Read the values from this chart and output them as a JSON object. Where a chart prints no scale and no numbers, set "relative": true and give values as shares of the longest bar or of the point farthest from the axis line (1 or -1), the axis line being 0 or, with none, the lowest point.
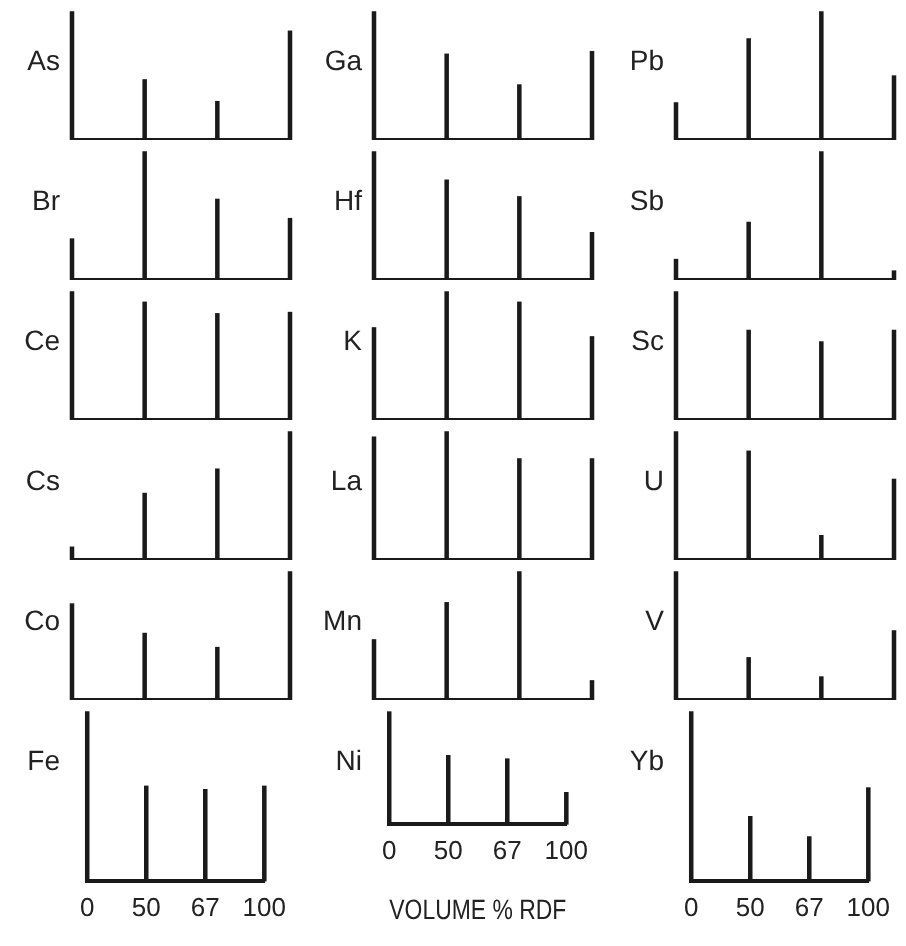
{
  "chart_data": [
    {
      "type": "bar",
      "ylabel": "As",
      "categories": [
        "0",
        "50",
        "67",
        "100"
      ],
      "values": [
        1,
        0.47,
        0.3,
        0.85
      ],
      "relative": true,
      "color": "#1a1a1a",
      "tick_labels": false
    },
    {
      "type": "bar",
      "ylabel": "Ga",
      "categories": [
        "0",
        "50",
        "67",
        "100"
      ],
      "values": [
        1,
        0.67,
        0.43,
        0.69
      ],
      "relative": true,
      "color": "#1a1a1a",
      "tick_labels": false
    },
    {
      "type": "bar",
      "ylabel": "Pb",
      "categories": [
        "0",
        "50",
        "67",
        "100"
      ],
      "values": [
        0.29,
        0.79,
        1,
        0.5
      ],
      "relative": true,
      "color": "#1a1a1a",
      "tick_labels": false
    },
    {
      "type": "bar",
      "ylabel": "Br",
      "categories": [
        "0",
        "50",
        "67",
        "100"
      ],
      "values": [
        0.32,
        1,
        0.63,
        0.48
      ],
      "relative": true,
      "color": "#1a1a1a",
      "tick_labels": false
    },
    {
      "type": "bar",
      "ylabel": "Hf",
      "categories": [
        "0",
        "50",
        "67",
        "100"
      ],
      "values": [
        1,
        0.78,
        0.65,
        0.37
      ],
      "relative": true,
      "color": "#1a1a1a",
      "tick_labels": false
    },
    {
      "type": "bar",
      "ylabel": "Sb",
      "categories": [
        "0",
        "50",
        "67",
        "100"
      ],
      "values": [
        0.16,
        0.45,
        1,
        0.07
      ],
      "relative": true,
      "color": "#1a1a1a",
      "tick_labels": false
    },
    {
      "type": "bar",
      "ylabel": "Ce",
      "categories": [
        "0",
        "50",
        "67",
        "100"
      ],
      "values": [
        1,
        0.92,
        0.83,
        0.84
      ],
      "relative": true,
      "color": "#1a1a1a",
      "tick_labels": false
    },
    {
      "type": "bar",
      "ylabel": "K",
      "categories": [
        "0",
        "50",
        "67",
        "100"
      ],
      "values": [
        0.72,
        1,
        0.92,
        0.65
      ],
      "relative": true,
      "color": "#1a1a1a",
      "tick_labels": false
    },
    {
      "type": "bar",
      "ylabel": "Sc",
      "categories": [
        "0",
        "50",
        "67",
        "100"
      ],
      "values": [
        1,
        0.7,
        0.61,
        0.7
      ],
      "relative": true,
      "color": "#1a1a1a",
      "tick_labels": false
    },
    {
      "type": "bar",
      "ylabel": "Cs",
      "categories": [
        "0",
        "50",
        "67",
        "100"
      ],
      "values": [
        0.1,
        0.52,
        0.71,
        1
      ],
      "relative": true,
      "color": "#1a1a1a",
      "tick_labels": false
    },
    {
      "type": "bar",
      "ylabel": "La",
      "categories": [
        "0",
        "50",
        "67",
        "100"
      ],
      "values": [
        0.96,
        1,
        0.79,
        0.79
      ],
      "relative": true,
      "color": "#1a1a1a",
      "tick_labels": false
    },
    {
      "type": "bar",
      "ylabel": "U",
      "categories": [
        "0",
        "50",
        "67",
        "100"
      ],
      "values": [
        1,
        0.85,
        0.19,
        0.63
      ],
      "relative": true,
      "color": "#1a1a1a",
      "tick_labels": false
    },
    {
      "type": "bar",
      "ylabel": "Co",
      "categories": [
        "0",
        "50",
        "67",
        "100"
      ],
      "values": [
        0.75,
        0.52,
        0.41,
        1
      ],
      "relative": true,
      "color": "#1a1a1a",
      "tick_labels": false
    },
    {
      "type": "bar",
      "ylabel": "Mn",
      "categories": [
        "0",
        "50",
        "67",
        "100"
      ],
      "values": [
        0.47,
        0.76,
        1,
        0.15
      ],
      "relative": true,
      "color": "#1a1a1a",
      "tick_labels": false
    },
    {
      "type": "bar",
      "ylabel": "V",
      "categories": [
        "0",
        "50",
        "67",
        "100"
      ],
      "values": [
        1,
        0.33,
        0.18,
        0.54
      ],
      "relative": true,
      "color": "#1a1a1a",
      "tick_labels": false
    },
    {
      "type": "bar",
      "ylabel": "Fe",
      "categories": [
        "0",
        "50",
        "67",
        "100"
      ],
      "values": [
        1,
        0.56,
        0.54,
        0.56
      ],
      "relative": true,
      "color": "#1a1a1a",
      "tick_labels": "x"
    },
    {
      "type": "bar",
      "ylabel": "Ni",
      "xlabel": "VOLUME % RDF",
      "categories": [
        "0",
        "50",
        "67",
        "100"
      ],
      "values": [
        1,
        0.61,
        0.58,
        0.28
      ],
      "relative": true,
      "color": "#1a1a1a",
      "tick_labels": "x"
    },
    {
      "type": "bar",
      "ylabel": "Yb",
      "categories": [
        "0",
        "50",
        "67",
        "100"
      ],
      "values": [
        1,
        0.38,
        0.26,
        0.55
      ],
      "relative": true,
      "color": "#1a1a1a",
      "tick_labels": "x"
    }
  ]
}
